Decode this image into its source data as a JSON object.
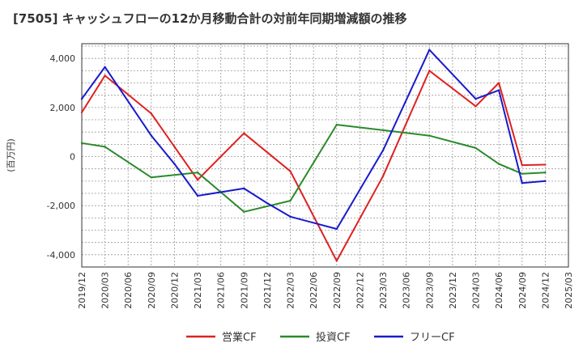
{
  "chart_data": {
    "type": "line",
    "title": "[7505]  キャッシュフローの12か月移動合計の対前年同期増減額の推移",
    "ylabel": "(百万円)",
    "xlabel": "",
    "ylim": [
      -4500,
      4600
    ],
    "yticks": [
      -4000,
      -2000,
      0,
      2000,
      4000
    ],
    "ytick_labels": [
      "-4,000",
      "-2,000",
      "0",
      "2,000",
      "4,000"
    ],
    "x_tick_labels": [
      "2019/12",
      "2020/03",
      "2020/06",
      "2020/09",
      "2020/12",
      "2021/03",
      "2021/06",
      "2021/09",
      "2021/12",
      "2022/03",
      "2022/06",
      "2022/09",
      "2022/12",
      "2023/03",
      "2023/06",
      "2023/09",
      "2023/12",
      "2024/03",
      "2024/06",
      "2024/09",
      "2024/12",
      "2025/03"
    ],
    "legend_position": "bottom",
    "series": [
      {
        "name": "営業CF",
        "color": "#dd2222",
        "x": [
          "2019/12",
          "2020/03",
          "2020/09",
          "2020/12",
          "2021/03",
          "2021/09",
          "2022/03",
          "2022/09",
          "2023/03",
          "2023/09",
          "2024/03",
          "2024/06",
          "2024/09",
          "2024/12"
        ],
        "values": [
          1800,
          3300,
          1750,
          400,
          -950,
          950,
          -600,
          -4250,
          -800,
          3500,
          2050,
          3000,
          -350,
          -330
        ]
      },
      {
        "name": "投資CF",
        "color": "#2a8a2a",
        "x": [
          "2019/12",
          "2020/03",
          "2020/09",
          "2021/03",
          "2021/09",
          "2022/03",
          "2022/09",
          "2023/09",
          "2024/03",
          "2024/06",
          "2024/09",
          "2024/12"
        ],
        "values": [
          550,
          400,
          -850,
          -650,
          -2250,
          -1800,
          1300,
          850,
          350,
          -300,
          -700,
          -650
        ]
      },
      {
        "name": "フリーCF",
        "color": "#1a1acc",
        "x": [
          "2019/12",
          "2020/03",
          "2020/09",
          "2020/12",
          "2021/03",
          "2021/09",
          "2021/12",
          "2022/03",
          "2022/09",
          "2023/03",
          "2023/09",
          "2024/03",
          "2024/06",
          "2024/09",
          "2024/12"
        ],
        "values": [
          2350,
          3650,
          850,
          -300,
          -1600,
          -1300,
          -1900,
          -2450,
          -2950,
          250,
          4350,
          2350,
          2700,
          -1080,
          -1000
        ]
      }
    ]
  }
}
